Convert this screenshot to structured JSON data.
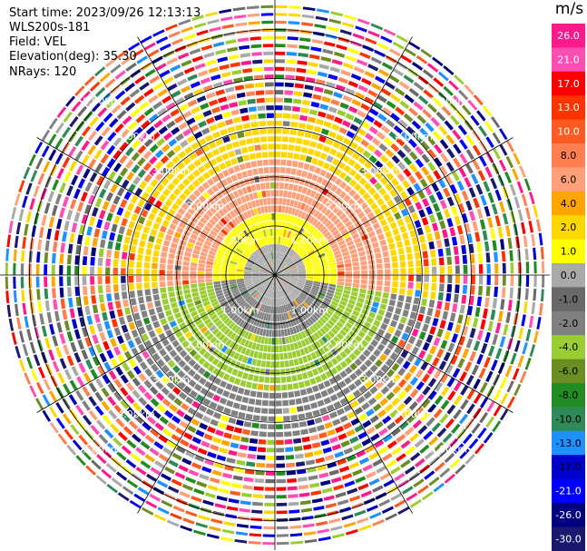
{
  "header": {
    "start_time": "Start time: 2023/09/26 12:13:13",
    "instrument": "WLS200s-181",
    "field": "Field: VEL",
    "elevation": "Elevation(deg): 35.30",
    "nrays": "NRays: 120"
  },
  "colorbar": {
    "unit": "m/s",
    "ticks": [
      "26.0",
      "21.0",
      "17.0",
      "13.0",
      "10.0",
      "8.0",
      "6.0",
      "4.0",
      "2.0",
      "1.0",
      "0.0",
      "-1.0",
      "-2.0",
      "-4.0",
      "-6.0",
      "-8.0",
      "-10.0",
      "-13.0",
      "-17.0",
      "-21.0",
      "-26.0",
      "-30.0"
    ],
    "colors": [
      "#ff1a8c",
      "#ff4db3",
      "#ff0000",
      "#ff3300",
      "#ff5a1f",
      "#ff7f50",
      "#ffa07a",
      "#ffa500",
      "#ffd700",
      "#ffff00",
      "#a9a9a9",
      "#696969",
      "#808080",
      "#9acd32",
      "#6b8e23",
      "#228b22",
      "#2e8b57",
      "#1e90ff",
      "#0000cd",
      "#0000ff",
      "#000080",
      "#191970"
    ]
  },
  "range_labels": [
    "1.00km",
    "2.00km",
    "3.00km",
    "4.00km",
    "5.00km"
  ],
  "chart_data": {
    "type": "heatmap",
    "subtype": "ppi",
    "field": "VEL",
    "units": "m/s",
    "nrays": 120,
    "elevation_deg": 35.3,
    "range_rings_km": [
      1,
      2,
      3,
      4,
      5
    ],
    "max_range_km": 5.6,
    "clim": [
      -30,
      26
    ],
    "value_bands": [
      {
        "range_km": [
          0,
          0.5
        ],
        "sector": "all",
        "value": 0.0
      },
      {
        "range_km": [
          0.5,
          1.2
        ],
        "sector": "north",
        "value": 1.0
      },
      {
        "range_km": [
          0.5,
          1.2
        ],
        "sector": "south",
        "value": -2.0
      },
      {
        "range_km": [
          1.2,
          2.3
        ],
        "sector": "north",
        "value": 6.0
      },
      {
        "range_km": [
          1.2,
          2.3
        ],
        "sector": "south",
        "value": -5.0
      },
      {
        "range_km": [
          2.3,
          3.3
        ],
        "sector": "north",
        "value": 2.0
      },
      {
        "range_km": [
          2.3,
          3.3
        ],
        "sector": "south",
        "value": -3.0
      },
      {
        "range_km": [
          3.3,
          5.6
        ],
        "sector": "all",
        "value": "noise"
      }
    ]
  }
}
